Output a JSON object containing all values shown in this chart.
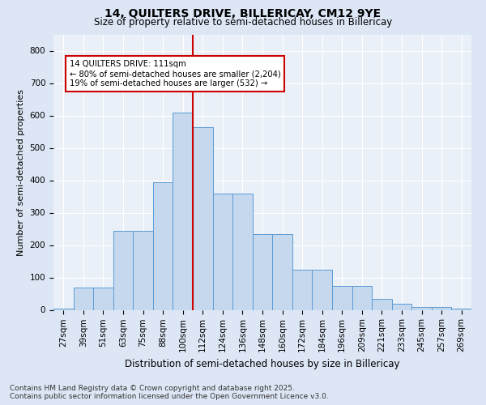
{
  "title_line1": "14, QUILTERS DRIVE, BILLERICAY, CM12 9YE",
  "title_line2": "Size of property relative to semi-detached houses in Billericay",
  "xlabel": "Distribution of semi-detached houses by size in Billericay",
  "ylabel": "Number of semi-detached properties",
  "categories": [
    "27sqm",
    "39sqm",
    "51sqm",
    "63sqm",
    "75sqm",
    "88sqm",
    "100sqm",
    "112sqm",
    "124sqm",
    "136sqm",
    "148sqm",
    "160sqm",
    "172sqm",
    "184sqm",
    "196sqm",
    "209sqm",
    "221sqm",
    "233sqm",
    "245sqm",
    "257sqm",
    "269sqm"
  ],
  "values": [
    5,
    68,
    68,
    245,
    245,
    395,
    610,
    565,
    360,
    360,
    235,
    235,
    125,
    125,
    75,
    75,
    35,
    20,
    8,
    8,
    5
  ],
  "bar_color": "#c5d8ee",
  "bar_edge_color": "#5b9bd5",
  "vline_color": "#cc0000",
  "annotation_title": "14 QUILTERS DRIVE: 111sqm",
  "annotation_line1": "← 80% of semi-detached houses are smaller (2,204)",
  "annotation_line2": "19% of semi-detached houses are larger (532) →",
  "annotation_box_edge_color": "#cc0000",
  "ylim": [
    0,
    850
  ],
  "yticks": [
    0,
    100,
    200,
    300,
    400,
    500,
    600,
    700,
    800
  ],
  "footer_line1": "Contains HM Land Registry data © Crown copyright and database right 2025.",
  "footer_line2": "Contains public sector information licensed under the Open Government Licence v3.0.",
  "bg_color": "#dce6f5",
  "plot_bg_color": "#eaf0f8",
  "grid_color": "#ffffff",
  "title_fontsize": 10,
  "subtitle_fontsize": 8.5,
  "tick_fontsize": 7.5,
  "ylabel_fontsize": 8,
  "xlabel_fontsize": 8.5,
  "footer_fontsize": 6.5
}
